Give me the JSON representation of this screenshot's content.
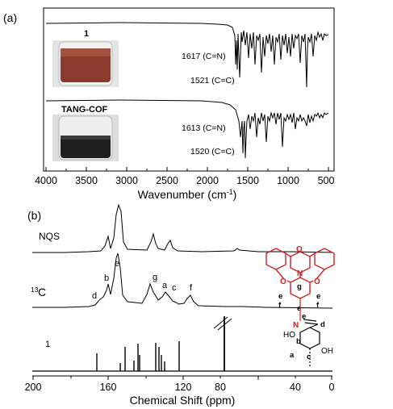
{
  "panel_a": {
    "label": "(a)",
    "x_ticks": [
      "4000",
      "3500",
      "3000",
      "2500",
      "2000",
      "1500",
      "1000",
      "500"
    ],
    "x_axis_title": "Wavenumber (cm",
    "x_axis_title_sup": "-1",
    "x_axis_title_end": ")",
    "spectrum_top_label": "1",
    "spectrum_top_annotations": [
      "1617 (C=N)",
      "1521 (C=C)"
    ],
    "spectrum_bottom_label": "TANG-COF",
    "spectrum_bottom_annotations": [
      "1613 (C=N)",
      "1520 (C=C)"
    ],
    "photo_top_color": "#8a3b2d",
    "photo_bottom_color": "#1f1f1f"
  },
  "panel_b": {
    "label": "(b)",
    "trace_labels": {
      "nqs": "NQS",
      "c13_sup": "13",
      "c13": "C",
      "ref": "1"
    },
    "peak_letters": [
      "d",
      "b",
      "e",
      "g",
      "a",
      "c",
      "f"
    ],
    "x_ticks": [
      "200",
      "160",
      "120",
      "80",
      "40",
      "0"
    ],
    "x_axis_title": "Chemical Shift (ppm)",
    "structure_letters": [
      "g",
      "e",
      "f",
      "e",
      "f",
      "e",
      "e",
      "d",
      "b",
      "a",
      "c"
    ],
    "structure_atoms": [
      "O",
      "O",
      "O",
      "N",
      "N",
      "HO",
      "OH"
    ],
    "red_color": "#d42020"
  }
}
